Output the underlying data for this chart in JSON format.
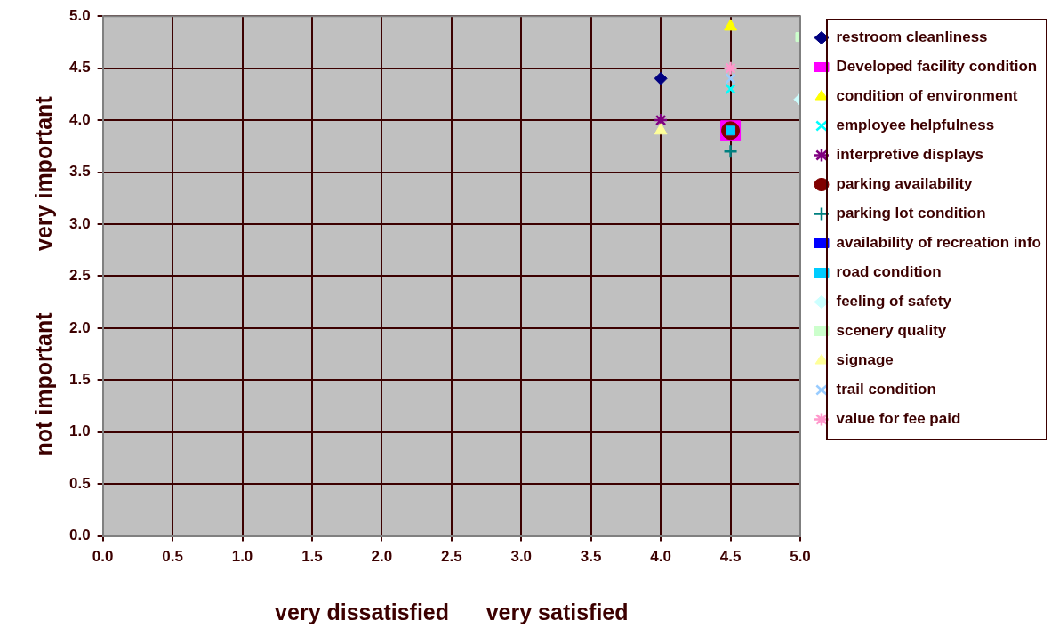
{
  "chart_data": {
    "type": "scatter",
    "xlabel": "very dissatisfied      very satisfied",
    "ylabel": "not important          very important",
    "xlim": [
      0,
      5
    ],
    "ylim": [
      0,
      5
    ],
    "xticks": [
      {
        "value": 0,
        "label": "0.0"
      },
      {
        "value": 0.5,
        "label": "0.5"
      },
      {
        "value": 1,
        "label": "1.0"
      },
      {
        "value": 1.5,
        "label": "1.5"
      },
      {
        "value": 2,
        "label": "2.0"
      },
      {
        "value": 2.5,
        "label": "2.5"
      },
      {
        "value": 3,
        "label": "3.0"
      },
      {
        "value": 3.5,
        "label": "3.5"
      },
      {
        "value": 4,
        "label": "4.0"
      },
      {
        "value": 4.5,
        "label": "4.5"
      },
      {
        "value": 5,
        "label": "5.0"
      }
    ],
    "yticks": [
      {
        "value": 0,
        "label": "0.0"
      },
      {
        "value": 0.5,
        "label": "0.5"
      },
      {
        "value": 1,
        "label": "1.0"
      },
      {
        "value": 1.5,
        "label": "1.5"
      },
      {
        "value": 2,
        "label": "2.0"
      },
      {
        "value": 2.5,
        "label": "2.5"
      },
      {
        "value": 3,
        "label": "3.0"
      },
      {
        "value": 3.5,
        "label": "3.5"
      },
      {
        "value": 4,
        "label": "4.0"
      },
      {
        "value": 4.5,
        "label": "4.5"
      },
      {
        "value": 5,
        "label": "5.0"
      }
    ],
    "grid": true,
    "legend": "right",
    "series": [
      {
        "name": "restroom cleanliness",
        "color": "#000080",
        "marker": "diamond",
        "x": [
          4.0
        ],
        "values": [
          4.4
        ]
      },
      {
        "name": "Developed facility condition",
        "color": "#ff00ff",
        "marker": "square",
        "x": [
          4.5
        ],
        "values": [
          3.9
        ]
      },
      {
        "name": "condition of environment",
        "color": "#ffff00",
        "marker": "triangle",
        "x": [
          4.5
        ],
        "values": [
          4.9
        ]
      },
      {
        "name": "employee helpfulness",
        "color": "#00ffff",
        "marker": "x",
        "x": [
          4.5
        ],
        "values": [
          4.3
        ]
      },
      {
        "name": "interpretive displays",
        "color": "#800080",
        "marker": "cross",
        "x": [
          4.0
        ],
        "values": [
          4.0
        ]
      },
      {
        "name": "parking availability",
        "color": "#800000",
        "marker": "circle",
        "x": [
          4.5
        ],
        "values": [
          3.9
        ]
      },
      {
        "name": "parking lot condition",
        "color": "#008080",
        "marker": "plus",
        "x": [
          4.5
        ],
        "values": [
          3.7
        ]
      },
      {
        "name": "availability of recreation info",
        "color": "#0000ff",
        "marker": "square",
        "x": [
          null
        ],
        "values": [
          null
        ]
      },
      {
        "name": "road condition",
        "color": "#00ccff",
        "marker": "square",
        "x": [
          4.5
        ],
        "values": [
          3.9
        ]
      },
      {
        "name": "feeling of safety",
        "color": "#ccffff",
        "marker": "diamond",
        "x": [
          5.0
        ],
        "values": [
          4.2
        ]
      },
      {
        "name": "scenery quality",
        "color": "#ccffcc",
        "marker": "square",
        "x": [
          5.0
        ],
        "values": [
          4.8
        ]
      },
      {
        "name": "signage",
        "color": "#ffff99",
        "marker": "triangle",
        "x": [
          4.0
        ],
        "values": [
          3.9
        ]
      },
      {
        "name": "trail condition",
        "color": "#99ccff",
        "marker": "x",
        "x": [
          4.5
        ],
        "values": [
          4.4
        ]
      },
      {
        "name": "value for fee paid",
        "color": "#ff99cc",
        "marker": "cross",
        "x": [
          4.5
        ],
        "values": [
          4.5
        ]
      }
    ]
  }
}
